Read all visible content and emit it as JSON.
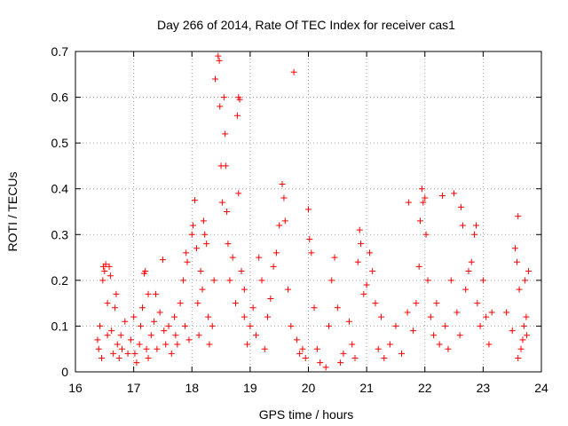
{
  "chart_data": {
    "type": "scatter",
    "title": "Day 266 of 2014, Rate Of TEC Index for receiver cas1",
    "xlabel": "GPS time / hours",
    "ylabel": "ROTI / TECUs",
    "xlim": [
      16,
      24
    ],
    "ylim": [
      0,
      0.7
    ],
    "grid": true,
    "marker": "+",
    "color": "#ff0000",
    "x_ticks": [
      16,
      17,
      18,
      19,
      20,
      21,
      22,
      23,
      24
    ],
    "x_tick_labels": [
      "16",
      "17",
      "18",
      "19",
      "20",
      "21",
      "22",
      "23",
      "24"
    ],
    "y_ticks": [
      0,
      0.1,
      0.2,
      0.3,
      0.4,
      0.5,
      0.6,
      0.7
    ],
    "y_tick_labels": [
      "0",
      "0.1",
      "0.2",
      "0.3",
      "0.4",
      "0.5",
      "0.6",
      "0.7"
    ],
    "series": [
      {
        "name": "cas1",
        "points": [
          [
            16.38,
            0.07
          ],
          [
            16.4,
            0.05
          ],
          [
            16.42,
            0.1
          ],
          [
            16.45,
            0.03
          ],
          [
            16.47,
            0.2
          ],
          [
            16.48,
            0.23
          ],
          [
            16.5,
            0.22
          ],
          [
            16.52,
            0.235
          ],
          [
            16.55,
            0.15
          ],
          [
            16.58,
            0.23
          ],
          [
            16.6,
            0.21
          ],
          [
            16.62,
            0.09
          ],
          [
            16.65,
            0.04
          ],
          [
            16.68,
            0.14
          ],
          [
            16.7,
            0.17
          ],
          [
            16.72,
            0.06
          ],
          [
            16.75,
            0.03
          ],
          [
            16.78,
            0.08
          ],
          [
            16.8,
            0.05
          ],
          [
            16.85,
            0.11
          ],
          [
            16.9,
            0.04
          ],
          [
            16.95,
            0.07
          ],
          [
            17.0,
            0.12
          ],
          [
            17.02,
            0.04
          ],
          [
            17.05,
            0.02
          ],
          [
            17.1,
            0.06
          ],
          [
            17.12,
            0.1
          ],
          [
            17.15,
            0.14
          ],
          [
            17.18,
            0.215
          ],
          [
            17.2,
            0.22
          ],
          [
            17.22,
            0.05
          ],
          [
            17.25,
            0.03
          ],
          [
            17.3,
            0.08
          ],
          [
            17.35,
            0.11
          ],
          [
            17.38,
            0.17
          ],
          [
            17.4,
            0.05
          ],
          [
            17.45,
            0.13
          ],
          [
            17.5,
            0.245
          ],
          [
            17.52,
            0.09
          ],
          [
            17.55,
            0.06
          ],
          [
            17.6,
            0.1
          ],
          [
            17.65,
            0.04
          ],
          [
            17.7,
            0.12
          ],
          [
            17.72,
            0.08
          ],
          [
            17.75,
            0.06
          ],
          [
            17.8,
            0.15
          ],
          [
            17.85,
            0.2
          ],
          [
            17.88,
            0.1
          ],
          [
            17.9,
            0.26
          ],
          [
            17.92,
            0.24
          ],
          [
            17.95,
            0.07
          ],
          [
            18.0,
            0.3
          ],
          [
            18.02,
            0.32
          ],
          [
            18.05,
            0.375
          ],
          [
            18.08,
            0.27
          ],
          [
            18.1,
            0.15
          ],
          [
            18.12,
            0.08
          ],
          [
            18.15,
            0.22
          ],
          [
            18.18,
            0.18
          ],
          [
            18.2,
            0.33
          ],
          [
            18.22,
            0.3
          ],
          [
            18.25,
            0.28
          ],
          [
            18.28,
            0.12
          ],
          [
            18.3,
            0.06
          ],
          [
            18.35,
            0.1
          ],
          [
            18.38,
            0.2
          ],
          [
            18.4,
            0.64
          ],
          [
            18.45,
            0.69
          ],
          [
            18.47,
            0.68
          ],
          [
            18.48,
            0.58
          ],
          [
            18.5,
            0.45
          ],
          [
            18.52,
            0.37
          ],
          [
            18.55,
            0.6
          ],
          [
            18.57,
            0.52
          ],
          [
            18.58,
            0.45
          ],
          [
            18.6,
            0.35
          ],
          [
            18.62,
            0.28
          ],
          [
            18.65,
            0.2
          ],
          [
            18.7,
            0.25
          ],
          [
            18.75,
            0.15
          ],
          [
            18.78,
            0.56
          ],
          [
            18.8,
            0.6
          ],
          [
            18.82,
            0.595
          ],
          [
            18.8,
            0.39
          ],
          [
            18.85,
            0.22
          ],
          [
            18.9,
            0.12
          ],
          [
            18.95,
            0.06
          ],
          [
            19.0,
            0.1
          ],
          [
            19.05,
            0.14
          ],
          [
            19.1,
            0.08
          ],
          [
            19.15,
            0.25
          ],
          [
            19.2,
            0.2
          ],
          [
            19.25,
            0.05
          ],
          [
            19.3,
            0.12
          ],
          [
            19.35,
            0.16
          ],
          [
            19.4,
            0.23
          ],
          [
            19.45,
            0.26
          ],
          [
            19.5,
            0.32
          ],
          [
            19.55,
            0.41
          ],
          [
            19.58,
            0.38
          ],
          [
            19.6,
            0.33
          ],
          [
            19.65,
            0.18
          ],
          [
            19.7,
            0.1
          ],
          [
            19.75,
            0.655
          ],
          [
            19.8,
            0.07
          ],
          [
            19.85,
            0.04
          ],
          [
            19.9,
            0.05
          ],
          [
            19.95,
            0.03
          ],
          [
            20.0,
            0.355
          ],
          [
            20.02,
            0.29
          ],
          [
            20.05,
            0.26
          ],
          [
            20.1,
            0.14
          ],
          [
            20.15,
            0.05
          ],
          [
            20.2,
            0.02
          ],
          [
            20.3,
            0.01
          ],
          [
            20.35,
            0.1
          ],
          [
            20.4,
            0.2
          ],
          [
            20.45,
            0.25
          ],
          [
            20.5,
            0.14
          ],
          [
            20.55,
            0.02
          ],
          [
            20.6,
            0.04
          ],
          [
            20.7,
            0.11
          ],
          [
            20.75,
            0.06
          ],
          [
            20.8,
            0.03
          ],
          [
            20.85,
            0.24
          ],
          [
            20.88,
            0.31
          ],
          [
            20.9,
            0.28
          ],
          [
            20.95,
            0.17
          ],
          [
            21.0,
            0.19
          ],
          [
            21.05,
            0.26
          ],
          [
            21.1,
            0.22
          ],
          [
            21.15,
            0.15
          ],
          [
            21.2,
            0.05
          ],
          [
            21.25,
            0.12
          ],
          [
            21.3,
            0.03
          ],
          [
            21.4,
            0.06
          ],
          [
            21.5,
            0.1
          ],
          [
            21.6,
            0.04
          ],
          [
            21.7,
            0.13
          ],
          [
            21.72,
            0.37
          ],
          [
            21.8,
            0.09
          ],
          [
            21.85,
            0.15
          ],
          [
            21.9,
            0.23
          ],
          [
            21.92,
            0.33
          ],
          [
            21.95,
            0.4
          ],
          [
            21.97,
            0.37
          ],
          [
            22.0,
            0.38
          ],
          [
            22.02,
            0.3
          ],
          [
            22.05,
            0.2
          ],
          [
            22.1,
            0.12
          ],
          [
            22.15,
            0.08
          ],
          [
            22.2,
            0.15
          ],
          [
            22.25,
            0.06
          ],
          [
            22.3,
            0.385
          ],
          [
            22.35,
            0.1
          ],
          [
            22.4,
            0.05
          ],
          [
            22.45,
            0.2
          ],
          [
            22.5,
            0.39
          ],
          [
            22.55,
            0.13
          ],
          [
            22.6,
            0.08
          ],
          [
            22.62,
            0.36
          ],
          [
            22.65,
            0.32
          ],
          [
            22.7,
            0.18
          ],
          [
            22.75,
            0.22
          ],
          [
            22.8,
            0.24
          ],
          [
            22.85,
            0.3
          ],
          [
            22.88,
            0.32
          ],
          [
            22.9,
            0.15
          ],
          [
            22.95,
            0.1
          ],
          [
            23.0,
            0.2
          ],
          [
            23.05,
            0.12
          ],
          [
            23.1,
            0.06
          ],
          [
            23.15,
            0.13
          ],
          [
            23.4,
            0.13
          ],
          [
            23.5,
            0.09
          ],
          [
            23.55,
            0.27
          ],
          [
            23.58,
            0.24
          ],
          [
            23.6,
            0.34
          ],
          [
            23.62,
            0.18
          ],
          [
            23.65,
            0.05
          ],
          [
            23.7,
            0.1
          ],
          [
            23.72,
            0.2
          ],
          [
            23.75,
            0.08
          ],
          [
            23.78,
            0.22
          ],
          [
            23.6,
            0.03
          ],
          [
            23.68,
            0.07
          ],
          [
            23.74,
            0.12
          ],
          [
            16.55,
            0.08
          ],
          [
            17.25,
            0.17
          ],
          [
            18.9,
            0.18
          ]
        ]
      }
    ]
  }
}
